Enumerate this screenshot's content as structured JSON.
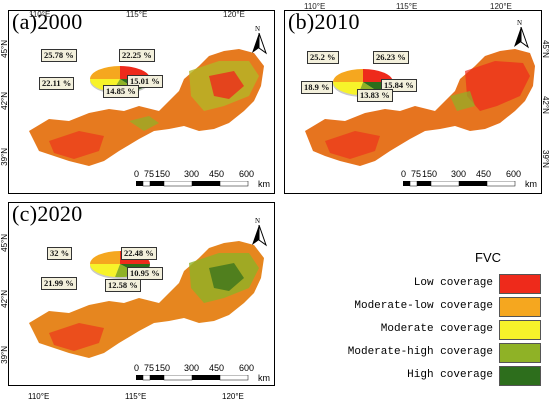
{
  "panels": [
    {
      "title": "(a)2000",
      "pcts": [
        "25.78 %",
        "22.25 %",
        "22.11 %",
        "15.01 %",
        "14.85 %"
      ]
    },
    {
      "title": "(b)2010",
      "pcts": [
        "25.2 %",
        "26.23 %",
        "18.9 %",
        "15.84 %",
        "13.83 %"
      ]
    },
    {
      "title": "(c)2020",
      "pcts": [
        "32 %",
        "22.48 %",
        "21.99 %",
        "10.95 %",
        "12.58 %"
      ]
    }
  ],
  "axis": {
    "lon": [
      "110°E",
      "115°E",
      "120°E"
    ],
    "lat": [
      "45°N",
      "42°N",
      "39°N"
    ]
  },
  "north": "N",
  "scale": {
    "nums": [
      "0",
      "75",
      "150",
      "300",
      "450",
      "600"
    ],
    "unit": "km"
  },
  "legend": {
    "title": "FVC",
    "items": [
      {
        "label": "Low coverage",
        "color": "#ee2a1b"
      },
      {
        "label": "Moderate-low coverage",
        "color": "#f5a71f"
      },
      {
        "label": "Moderate coverage",
        "color": "#f7f32a"
      },
      {
        "label": "Moderate-high coverage",
        "color": "#8fb226"
      },
      {
        "label": "High coverage",
        "color": "#2d6e1c"
      }
    ]
  }
}
